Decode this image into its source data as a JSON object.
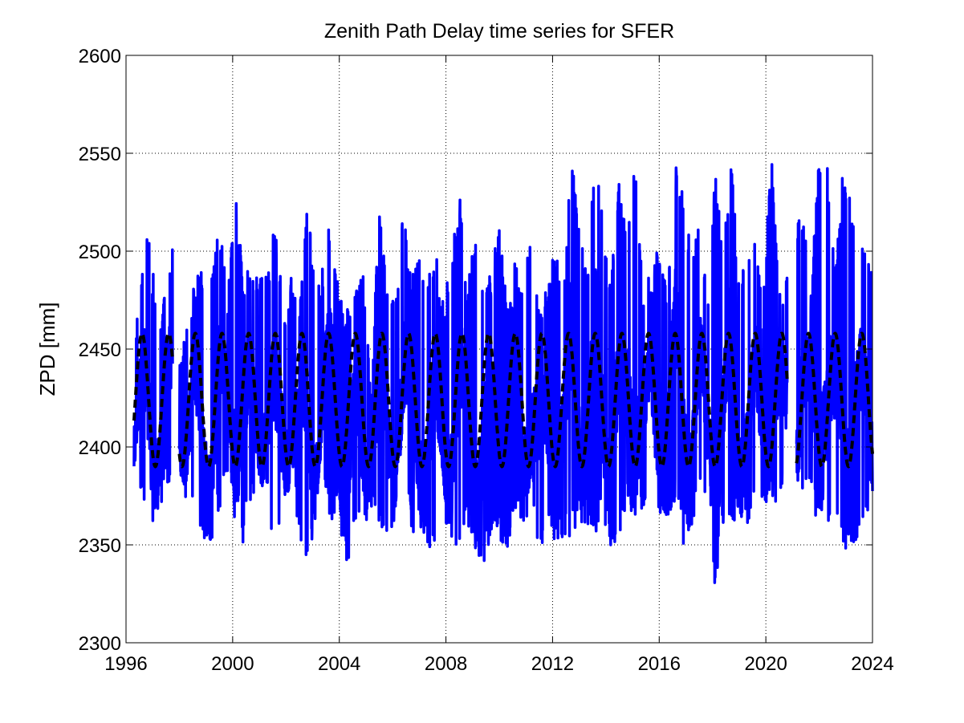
{
  "chart_data": {
    "type": "line",
    "title": "Zenith Path Delay time series for SFER",
    "xlabel": "",
    "ylabel": "ZPD [mm]",
    "xlim": [
      1996,
      2024
    ],
    "ylim": [
      2300,
      2600
    ],
    "x_ticks": [
      1996,
      2000,
      2004,
      2008,
      2012,
      2016,
      2020,
      2024
    ],
    "y_ticks": [
      2300,
      2350,
      2400,
      2450,
      2500,
      2550,
      2600
    ],
    "x_tick_labels": [
      "1996",
      "2000",
      "2004",
      "2008",
      "2012",
      "2016",
      "2020",
      "2024"
    ],
    "y_tick_labels": [
      "2300",
      "2350",
      "2400",
      "2450",
      "2500",
      "2550",
      "2600"
    ],
    "grid": true,
    "legend": "none",
    "series": [
      {
        "style": "solid",
        "color": "#0000ff",
        "sampling_note": "daily ZPD values, summarized as x/min/max envelope every ~0.4 year",
        "x": [
          1996.3,
          1996.5,
          1996.8,
          1997.0,
          1997.3,
          1997.5,
          1997.8,
          1998.0,
          1998.3,
          1998.6,
          1998.9,
          1999.2,
          1999.5,
          1999.8,
          2000.1,
          2000.4,
          2000.7,
          2001.0,
          2001.3,
          2001.6,
          2001.9,
          2002.2,
          2002.5,
          2002.8,
          2003.1,
          2003.4,
          2003.7,
          2004.0,
          2004.3,
          2004.6,
          2004.9,
          2005.2,
          2005.5,
          2005.8,
          2006.1,
          2006.4,
          2006.7,
          2007.0,
          2007.3,
          2007.6,
          2007.9,
          2008.2,
          2008.5,
          2008.8,
          2009.1,
          2009.4,
          2009.7,
          2010.0,
          2010.3,
          2010.6,
          2010.9,
          2011.2,
          2011.5,
          2011.8,
          2012.1,
          2012.4,
          2012.7,
          2013.0,
          2013.3,
          2013.6,
          2013.9,
          2014.2,
          2014.5,
          2014.8,
          2015.1,
          2015.4,
          2015.7,
          2016.0,
          2016.3,
          2016.6,
          2016.9,
          2017.2,
          2017.5,
          2017.8,
          2018.1,
          2018.4,
          2018.7,
          2019.0,
          2019.3,
          2019.6,
          2019.9,
          2020.2,
          2020.5,
          2020.8,
          2021.1,
          2021.4,
          2021.7,
          2022.0,
          2022.3,
          2022.6,
          2022.9,
          2023.2,
          2023.5,
          2023.8,
          2024.0
        ],
        "max": [
          2458,
          2482,
          2518,
          2490,
          2470,
          2488,
          2513,
          2442,
          2466,
          2485,
          2495,
          2488,
          2518,
          2478,
          2534,
          2486,
          2500,
          2488,
          2490,
          2515,
          2472,
          2488,
          2478,
          2534,
          2476,
          2494,
          2524,
          2478,
          2470,
          2482,
          2490,
          2438,
          2520,
          2480,
          2472,
          2527,
          2486,
          2500,
          2485,
          2506,
          2474,
          2496,
          2534,
          2480,
          2510,
          2478,
          2490,
          2515,
          2470,
          2496,
          2480,
          2516,
          2475,
          2480,
          2505,
          2486,
          2554,
          2520,
          2484,
          2559,
          2512,
          2488,
          2536,
          2505,
          2548,
          2478,
          2492,
          2507,
          2476,
          2545,
          2528,
          2500,
          2515,
          2480,
          2544,
          2500,
          2554,
          2480,
          2502,
          2505,
          2473,
          2554,
          2480,
          2490,
          2513,
          2524,
          2484,
          2552,
          2548,
          2490,
          2544,
          2524,
          2514,
          2500,
          2488
        ],
        "min": [
          2366,
          2372,
          2366,
          2356,
          2368,
          2378,
          2388,
          2385,
          2369,
          2371,
          2350,
          2352,
          2368,
          2380,
          2360,
          2350,
          2375,
          2372,
          2378,
          2339,
          2362,
          2378,
          2356,
          2334,
          2362,
          2380,
          2362,
          2366,
          2327,
          2358,
          2350,
          2368,
          2358,
          2350,
          2364,
          2374,
          2358,
          2352,
          2342,
          2348,
          2360,
          2352,
          2348,
          2362,
          2340,
          2338,
          2356,
          2350,
          2347,
          2362,
          2354,
          2378,
          2344,
          2360,
          2352,
          2350,
          2355,
          2362,
          2350,
          2354,
          2362,
          2348,
          2356,
          2368,
          2364,
          2365,
          2375,
          2352,
          2362,
          2370,
          2349,
          2348,
          2378,
          2358,
          2327,
          2360,
          2362,
          2359,
          2358,
          2370,
          2364,
          2367,
          2376,
          2370,
          2350,
          2378,
          2368,
          2362,
          2362,
          2358,
          2350,
          2344,
          2348,
          2356,
          2364
        ]
      },
      {
        "style": "dashed",
        "color": "#000000",
        "model": "annual sinusoid fit",
        "mean": 2424,
        "amplitude": 34,
        "period_years": 1,
        "peak_phase_year_fraction": 0.6,
        "segments": [
          [
            1996.3,
            1997.75
          ],
          [
            1998.0,
            2020.8
          ],
          [
            2021.15,
            2024.0
          ]
        ]
      }
    ]
  }
}
